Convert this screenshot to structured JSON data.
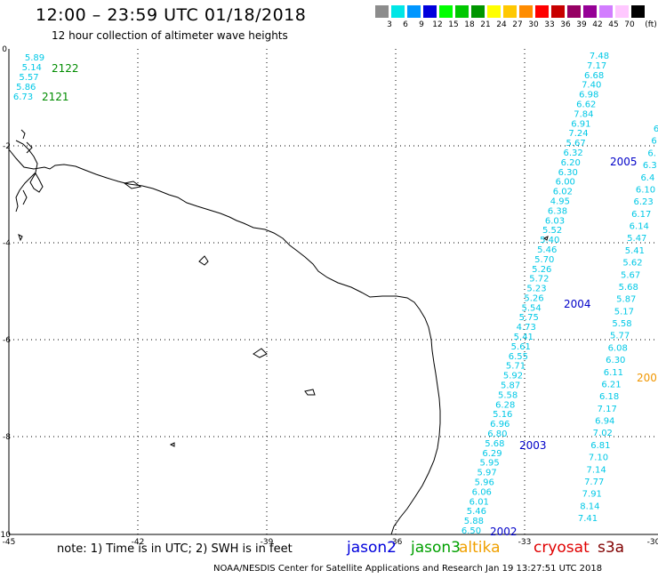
{
  "header": {
    "title": "12:00 – 23:59 UTC 01/18/2018",
    "subtitle": "12 hour collection of altimeter wave heights"
  },
  "legend": {
    "unit": "(ft)",
    "items": [
      {
        "label": "3",
        "color": "#8c8c8c"
      },
      {
        "label": "6",
        "color": "#00e6e6"
      },
      {
        "label": "9",
        "color": "#0096ff"
      },
      {
        "label": "12",
        "color": "#0000dc"
      },
      {
        "label": "15",
        "color": "#00ff00"
      },
      {
        "label": "18",
        "color": "#00c800"
      },
      {
        "label": "21",
        "color": "#009600"
      },
      {
        "label": "24",
        "color": "#ffff00"
      },
      {
        "label": "27",
        "color": "#ffc800"
      },
      {
        "label": "30",
        "color": "#ff8c00"
      },
      {
        "label": "33",
        "color": "#ff0000"
      },
      {
        "label": "36",
        "color": "#c80000"
      },
      {
        "label": "39",
        "color": "#960064"
      },
      {
        "label": "42",
        "color": "#960096"
      },
      {
        "label": "45",
        "color": "#d27dff"
      },
      {
        "label": "70",
        "color": "#ffc8ff"
      },
      {
        "label": "",
        "color": "#000000"
      }
    ]
  },
  "axes": {
    "x_ticks": [
      "-45",
      "-42",
      "-39",
      "-36",
      "-33",
      "-30"
    ],
    "y_ticks": [
      "0",
      "-2",
      "-4",
      "-6",
      "-8",
      "-10"
    ]
  },
  "passes": [
    {
      "label": "2122",
      "color": "#008c00"
    },
    {
      "label": "2121",
      "color": "#008c00"
    },
    {
      "label": "2005",
      "color": "#0000c8"
    },
    {
      "label": "2004",
      "color": "#0000c8"
    },
    {
      "label": "2003",
      "color": "#0000c8"
    },
    {
      "label": "2002",
      "color": "#0000c8"
    },
    {
      "label": "200",
      "color": "#f09600"
    }
  ],
  "tracks": {
    "track_nw": [
      "5.89",
      "5.14",
      "5.57",
      "5.86",
      "6.73"
    ],
    "track_main": [
      "6.50",
      "5.88",
      "5.46",
      "6.01",
      "6.06",
      "5.96",
      "5.97",
      "5.95",
      "6.29",
      "5.68",
      "6.80",
      "6.96",
      "5.16",
      "6.28",
      "5.58",
      "5.87",
      "5.92",
      "5.71",
      "6.55",
      "5.61",
      "5.41",
      "4.73",
      "5.75",
      "5.54",
      "5.26",
      "5.23",
      "5.72",
      "5.26",
      "5.70",
      "5.46",
      "5.40",
      "5.52",
      "6.03",
      "6.38",
      "4.95",
      "6.02",
      "6.00",
      "6.30",
      "6.20",
      "6.32",
      "5.67",
      "7.24",
      "6.91",
      "7.84",
      "6.62",
      "6.98",
      "7.40",
      "6.68",
      "7.17",
      "7.48"
    ],
    "track_se": [
      "7.41",
      "8.14",
      "7.91",
      "7.77",
      "7.14",
      "7.10",
      "6.81",
      "7.02",
      "6.94",
      "7.17",
      "6.18",
      "6.21",
      "6.11",
      "6.30",
      "6.08",
      "5.77",
      "5.58",
      "5.17",
      "5.87",
      "5.68",
      "5.67",
      "5.62",
      "5.41",
      "5.47",
      "6.14",
      "6.17",
      "6.23",
      "6.10",
      "6.4",
      "6.3",
      "6.",
      "6",
      "6"
    ]
  },
  "track_color": "#00c8e6",
  "note": "note:  1)  Time is in UTC;  2)  SWH is in feet",
  "satellites": [
    {
      "name": "jason2",
      "color": "#0000dc"
    },
    {
      "name": "jason3",
      "color": "#00a000"
    },
    {
      "name": "altika",
      "color": "#f0a000"
    },
    {
      "name": "cryosat",
      "color": "#e00000"
    },
    {
      "name": "s3a",
      "color": "#800000"
    }
  ],
  "footer": "NOAA/NESDIS Center for Satellite Applications and Research   Jan 19 13:27:51 UTC 2018"
}
